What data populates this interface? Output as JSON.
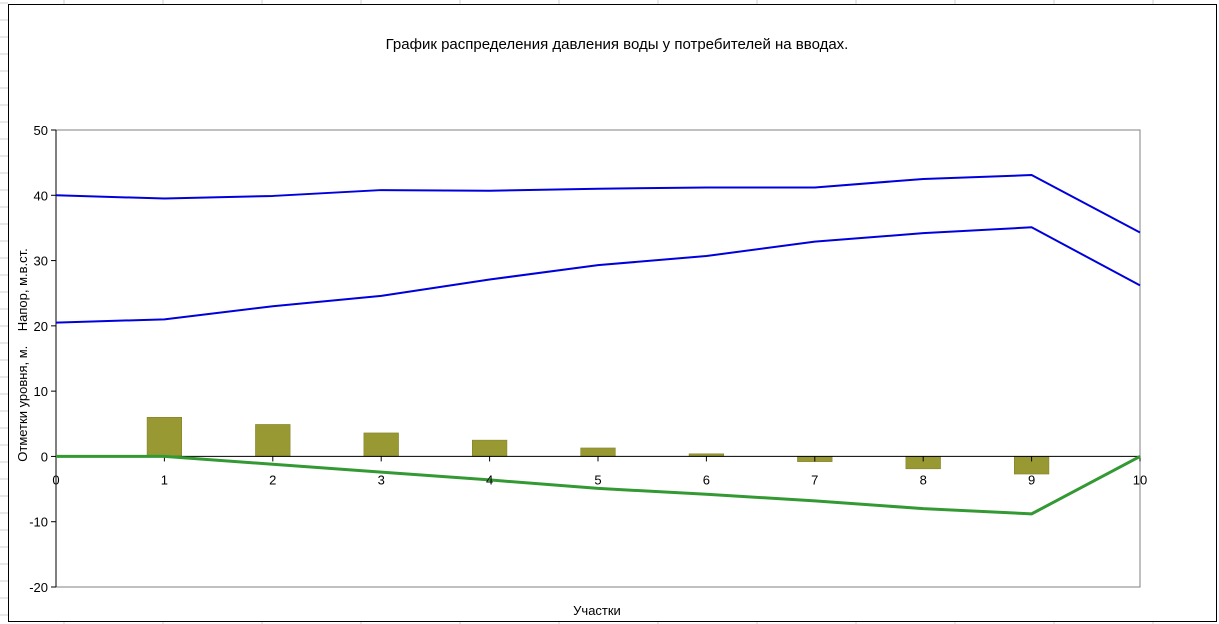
{
  "chart_data": {
    "type": "line",
    "title": "График распределения давления воды у потребителей на вводах.",
    "xlabel": "Участки",
    "ylabel": "Отметки уровня, м.    Напор, м.в.ст.",
    "xlim": [
      0,
      10
    ],
    "ylim": [
      -20,
      50
    ],
    "x_ticks": [
      "0",
      "1",
      "2",
      "3",
      "4",
      "5",
      "6",
      "7",
      "8",
      "9",
      "10"
    ],
    "y_ticks": [
      "-20",
      "-10",
      "0",
      "10",
      "20",
      "30",
      "40",
      "50"
    ],
    "grid": false,
    "legend": "none",
    "x": [
      0,
      1,
      2,
      3,
      4,
      5,
      6,
      7,
      8,
      9,
      10
    ],
    "series": [
      {
        "type": "line",
        "color": "#0000dd",
        "values": [
          40.0,
          39.5,
          39.9,
          40.8,
          40.7,
          41.0,
          41.2,
          41.2,
          42.5,
          43.1,
          34.3
        ]
      },
      {
        "type": "line",
        "color": "#0000dd",
        "values": [
          20.5,
          21.0,
          23.0,
          24.6,
          27.1,
          29.3,
          30.7,
          32.9,
          34.2,
          35.1,
          26.2
        ]
      },
      {
        "type": "line",
        "color": "#339933",
        "values": [
          0.0,
          0.0,
          -1.2,
          -2.4,
          -3.6,
          -4.9,
          -5.8,
          -6.8,
          -8.0,
          -8.8,
          0.0
        ]
      },
      {
        "type": "bar",
        "color": "#999933",
        "x": [
          1,
          2,
          3,
          4,
          5,
          6,
          7,
          8,
          9
        ],
        "values": [
          6.0,
          4.9,
          3.6,
          2.5,
          1.3,
          0.4,
          -0.8,
          -1.9,
          -2.7
        ]
      }
    ]
  }
}
